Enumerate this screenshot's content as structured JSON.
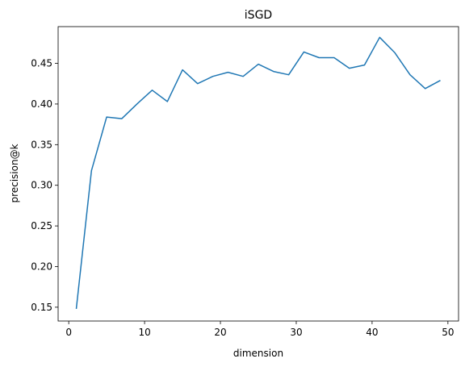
{
  "chart_data": {
    "type": "line",
    "title": "iSGD",
    "xlabel": "dimension",
    "ylabel": "precision@k",
    "xlim": [
      -1.4,
      51.4
    ],
    "ylim": [
      0.133,
      0.4952
    ],
    "xticks": [
      0,
      10,
      20,
      30,
      40,
      50
    ],
    "yticks": [
      0.15,
      0.2,
      0.25,
      0.3,
      0.35,
      0.4,
      0.45
    ],
    "ytick_labels": [
      "0.15",
      "0.20",
      "0.25",
      "0.30",
      "0.35",
      "0.40",
      "0.45"
    ],
    "grid": false,
    "line_color": "#1f77b4",
    "series": [
      {
        "x": [
          1,
          3,
          5,
          7,
          9,
          11,
          13,
          15,
          17,
          19,
          21,
          23,
          25,
          27,
          29,
          31,
          33,
          35,
          37,
          39,
          41,
          43,
          45,
          47,
          49
        ],
        "values": [
          0.148,
          0.318,
          0.384,
          0.382,
          0.4,
          0.417,
          0.403,
          0.442,
          0.425,
          0.434,
          0.439,
          0.434,
          0.449,
          0.44,
          0.436,
          0.464,
          0.457,
          0.457,
          0.444,
          0.448,
          0.482,
          0.463,
          0.436,
          0.419,
          0.429
        ]
      }
    ]
  }
}
